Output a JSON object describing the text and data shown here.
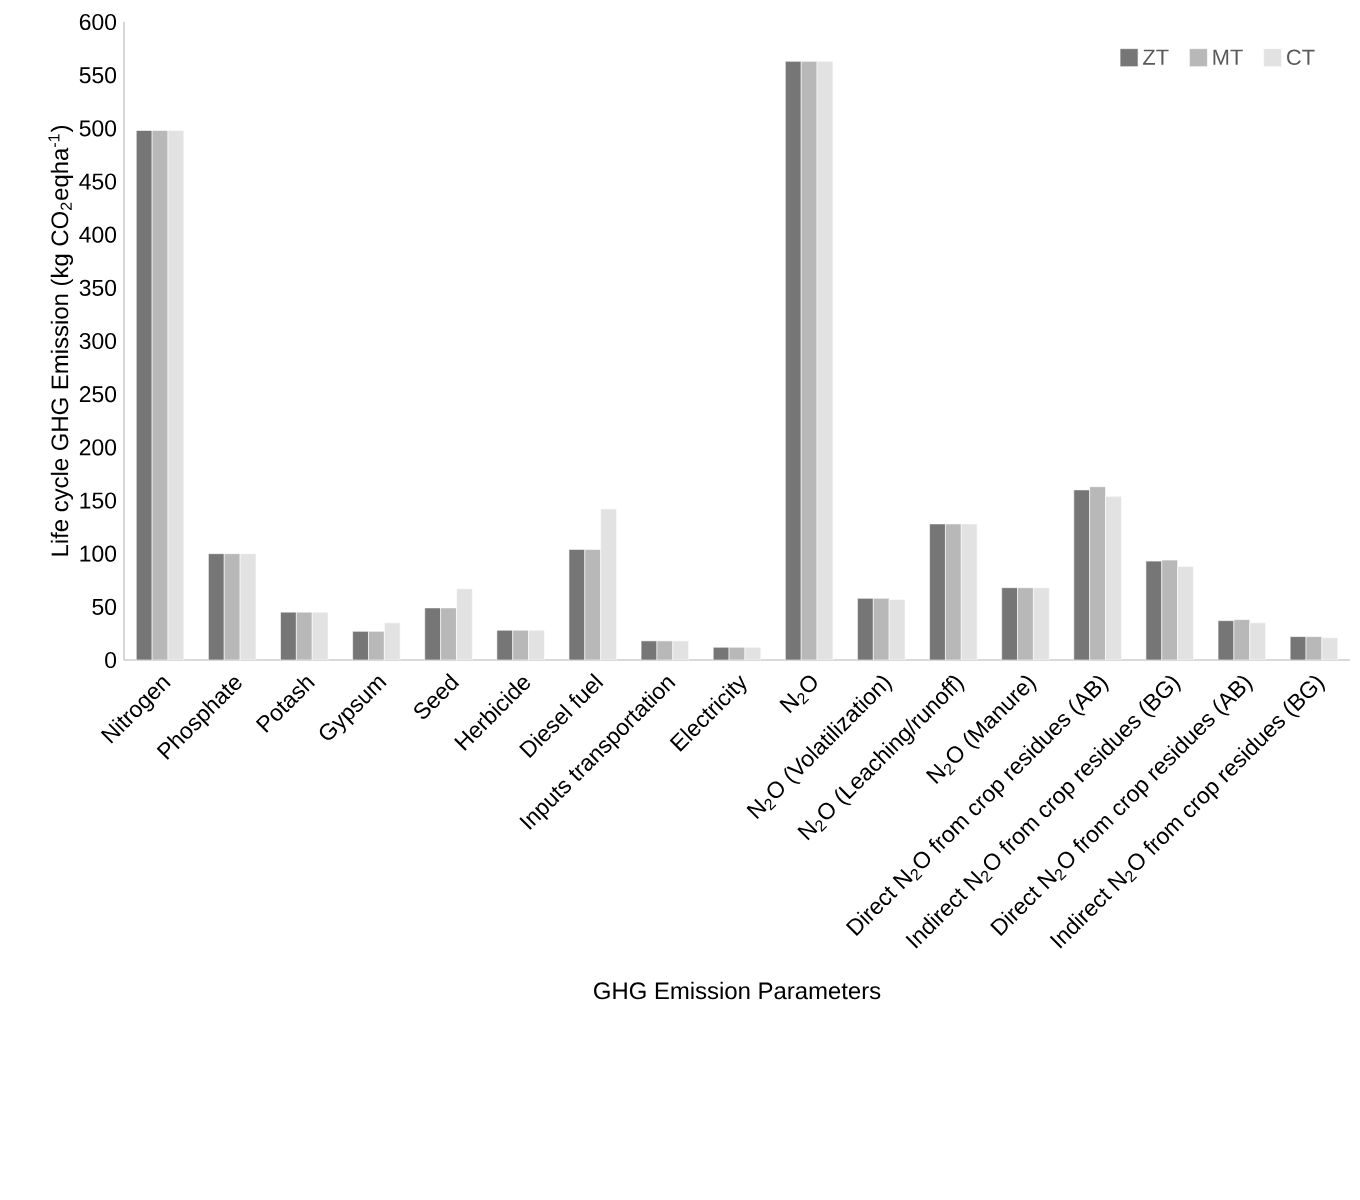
{
  "chart_data": {
    "type": "bar",
    "xlabel": "GHG Emission Parameters",
    "ylabel": "Life cycle GHG Emission (kg CO$_{2}$eqha$^{-1}$)",
    "categories": [
      "Nitrogen",
      "Phosphate",
      "Potash",
      "Gypsum",
      "Seed",
      "Herbicide",
      "Diesel fuel",
      "Inputs transportation",
      "Electricity",
      "N$_{2}$O",
      "N$_{2}$O (Volatilization)",
      "N$_{2}$O (Leaching/runoff)",
      "N$_{2}$O (Manure)",
      "Direct N$_{2}$O from crop residues (AB)",
      "Indirect N$_{2}$O from crop residues (BG)",
      "Direct N$_{2}$O from crop residues (AB)",
      "Indirect N$_{2}$O from crop residues (BG)"
    ],
    "series": [
      {
        "name": "ZT",
        "color": "#767676",
        "values": [
          498,
          100,
          45,
          27,
          49,
          28,
          104,
          18,
          12,
          563,
          58,
          128,
          68,
          160,
          93,
          37,
          22
        ]
      },
      {
        "name": "MT",
        "color": "#b8b8b8",
        "values": [
          498,
          100,
          45,
          27,
          49,
          28,
          104,
          18,
          12,
          563,
          58,
          128,
          68,
          163,
          94,
          38,
          22
        ]
      },
      {
        "name": "CT",
        "color": "#e2e2e2",
        "values": [
          498,
          100,
          45,
          35,
          67,
          28,
          142,
          18,
          12,
          563,
          57,
          128,
          68,
          154,
          88,
          35,
          21
        ]
      }
    ],
    "ylim": [
      0,
      600
    ],
    "yticks": [
      0,
      50,
      100,
      150,
      200,
      250,
      300,
      350,
      400,
      450,
      500,
      550,
      600
    ],
    "grid": false,
    "legend": "top right"
  }
}
